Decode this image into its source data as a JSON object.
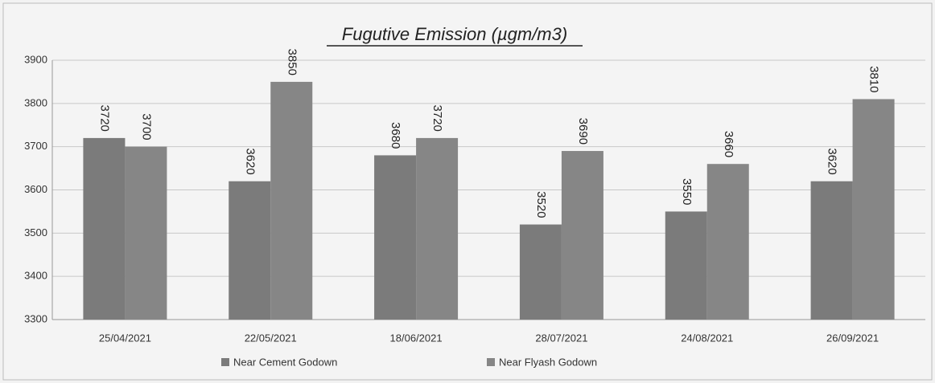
{
  "chart_data": {
    "type": "bar",
    "title": "Fugutive Emission (µgm/m3)",
    "categories": [
      "25/04/2021",
      "22/05/2021",
      "18/06/2021",
      "28/07/2021",
      "24/08/2021",
      "26/09/2021"
    ],
    "series": [
      {
        "name": "Near Cement Godown",
        "color": "#7b7b7b",
        "values": [
          3720,
          3620,
          3680,
          3520,
          3550,
          3620
        ]
      },
      {
        "name": "Near Flyash Godown",
        "color": "#868686",
        "values": [
          3700,
          3850,
          3720,
          3690,
          3660,
          3810
        ]
      }
    ],
    "ylim": [
      3300,
      3900
    ],
    "yticks": [
      3300,
      3400,
      3500,
      3600,
      3700,
      3800,
      3900
    ],
    "grid": true
  }
}
